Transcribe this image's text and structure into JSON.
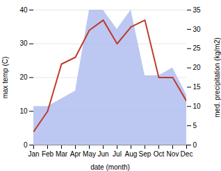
{
  "chart_data": {
    "type": "line",
    "xlabel": "date (month)",
    "ylabel": "max temp (C)",
    "y2label": "med. precipitation (kg/m2)",
    "categories": [
      "Jan",
      "Feb",
      "Mar",
      "Apr",
      "May",
      "Jun",
      "Jul",
      "Aug",
      "Sep",
      "Oct",
      "Nov",
      "Dec"
    ],
    "series": [
      {
        "type": "area",
        "color": "#b0bef0",
        "axis": "y2",
        "values": [
          10,
          10,
          12,
          14,
          35,
          35,
          30,
          35,
          18,
          18,
          20,
          13
        ]
      },
      {
        "type": "line",
        "color": "#c0392b",
        "values": [
          4,
          10,
          24,
          26,
          34,
          37,
          30,
          35,
          37,
          20,
          20,
          13
        ]
      }
    ],
    "ylim": [
      0,
      40
    ],
    "yticks": [
      0,
      10,
      20,
      30,
      40
    ],
    "y2lim": [
      0,
      35
    ],
    "y2ticks": [
      0,
      5,
      10,
      15,
      20,
      25,
      30,
      35
    ],
    "grid": true
  }
}
